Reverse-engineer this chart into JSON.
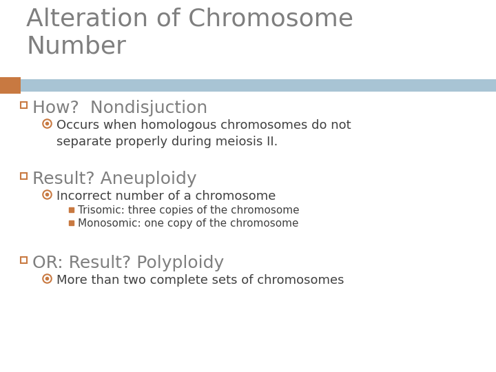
{
  "title": "Alteration of Chromosome\nNumber",
  "title_color": "#7f7f7f",
  "title_fontsize": 26,
  "background_color": "#ffffff",
  "header_bar_color": "#a8c4d4",
  "header_bar_left_color": "#c87941",
  "bullet1_text": "How?  Nondisjuction",
  "bullet1_color": "#7f7f7f",
  "bullet1_fontsize": 18,
  "bullet1_marker_color": "#c87941",
  "sub1_text": "Occurs when homologous chromosomes do not\nseparate properly during meiosis II.",
  "sub1_color": "#404040",
  "sub1_fontsize": 13,
  "sub1_marker_color": "#c87941",
  "bullet2_text": "Result? Aneuploidy",
  "bullet2_color": "#7f7f7f",
  "bullet2_fontsize": 18,
  "bullet2_marker_color": "#c87941",
  "sub2_text": "Incorrect number of a chromosome",
  "sub2_color": "#404040",
  "sub2_fontsize": 13,
  "sub2_marker_color": "#c87941",
  "sub2a_text": "Trisomic: three copies of the chromosome",
  "sub2a_color": "#404040",
  "sub2a_fontsize": 11,
  "sub2a_marker_color": "#c87941",
  "sub2b_text": "Monosomic: one copy of the chromosome",
  "sub2b_color": "#404040",
  "sub2b_fontsize": 11,
  "sub2b_marker_color": "#c87941",
  "bullet3_text": "OR: Result? Polyploidy",
  "bullet3_color": "#7f7f7f",
  "bullet3_fontsize": 18,
  "bullet3_marker_color": "#c87941",
  "sub3_text": "More than two complete sets of chromosomes",
  "sub3_color": "#404040",
  "sub3_fontsize": 13,
  "sub3_marker_color": "#c87941"
}
